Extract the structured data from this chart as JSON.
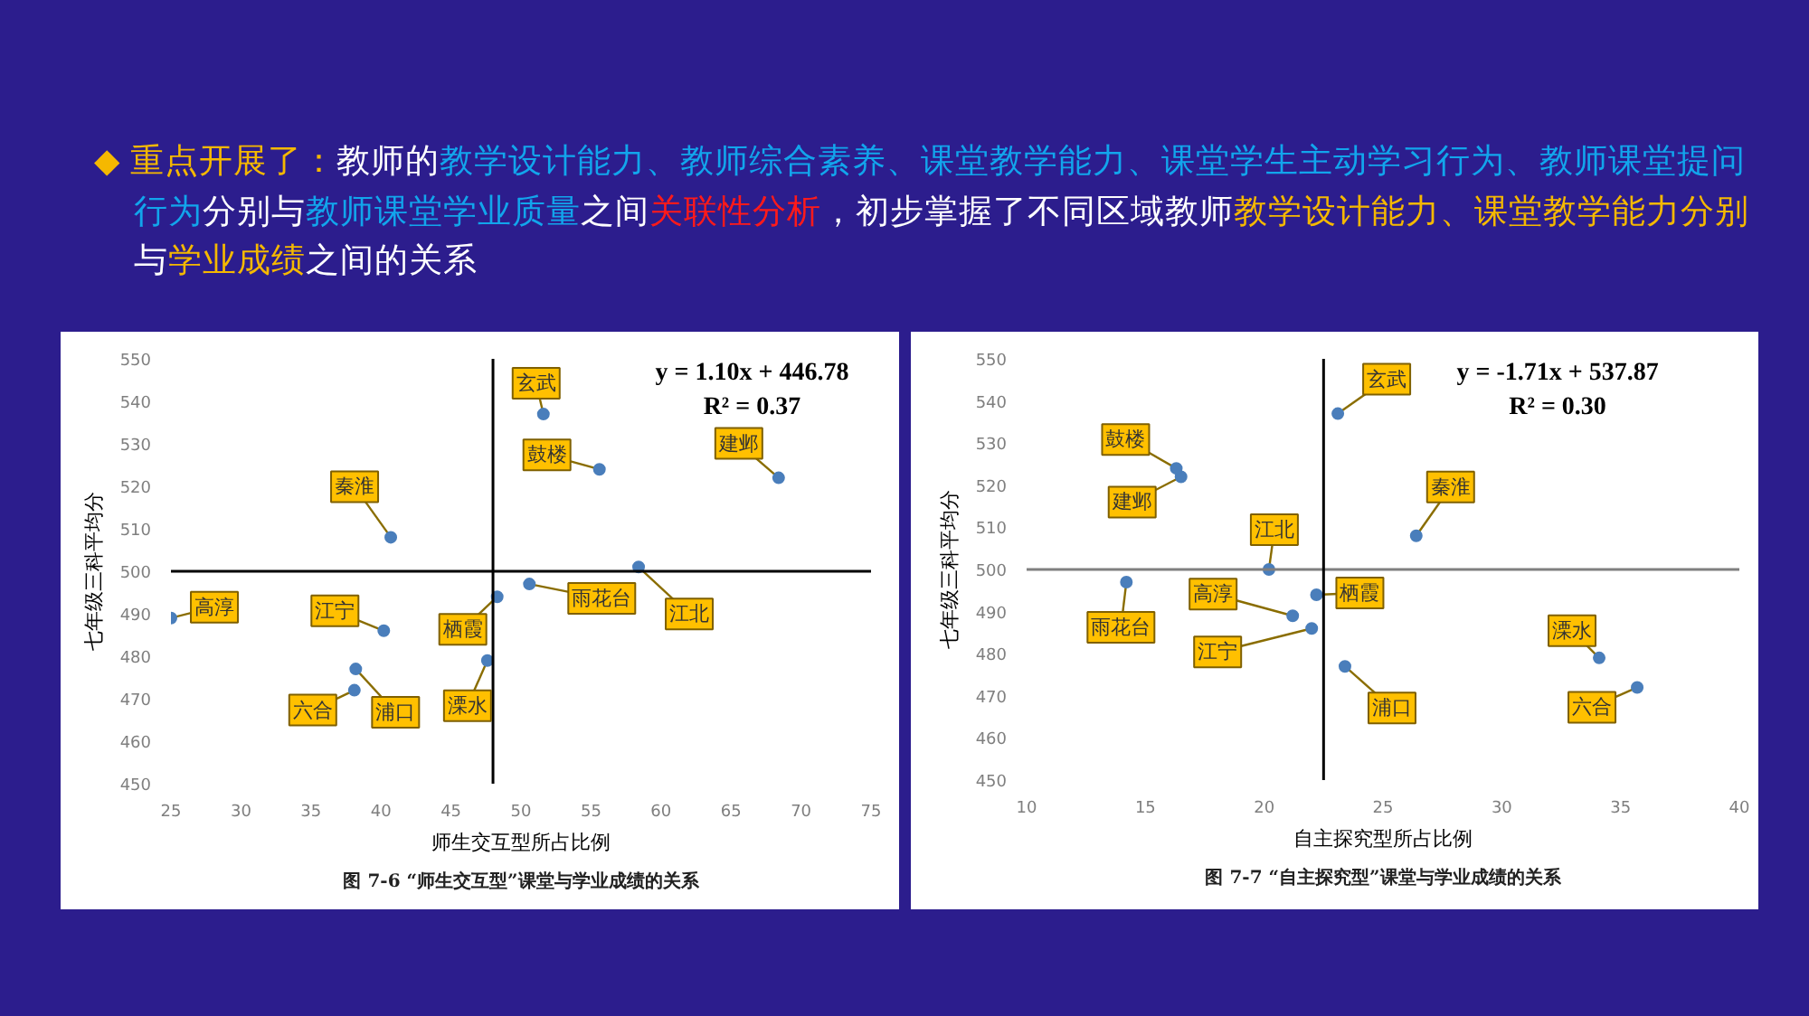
{
  "chart_data": [
    {
      "type": "other",
      "annotations": [
        "◆ 重点开展了：",
        "教师的",
        "教学设计能力、教师综合素养、课堂教学能力、课堂学生主动学习行为、教师课堂提问",
        "行为",
        "分别与",
        "教师课堂学业质量",
        "之间",
        "关联性分析",
        "，初步掌握了不同区域教师",
        "教学设计能力、课堂教学能力分别",
        "与",
        "学业成绩",
        "之间的关系"
      ],
      "colors": [
        "#f5b800",
        "#ffffff",
        "#12a5ec",
        "#12a5ec",
        "#ffffff",
        "#12a5ec",
        "#ffffff",
        "#ff1a1a",
        "#ffffff",
        "#f5b800",
        "#ffffff",
        "#f5b800",
        "#ffffff"
      ]
    },
    {
      "type": "scatter",
      "title": "图 7-6 “师生交互型”课堂与学业成绩的关系",
      "xlabel": "师生交互型所占比例",
      "ylabel": "七年级三科平均分",
      "marker": "circle",
      "grid": false,
      "x": [
        51.6,
        40.7,
        68.4,
        55.6,
        58.4,
        50.6,
        48.3,
        40.2,
        38.2,
        38.1,
        47.6,
        25.0
      ],
      "series": [
        {
          "color": "#4a7ebb",
          "values": [
            537,
            508,
            522,
            524,
            501,
            497,
            494,
            486,
            477,
            472,
            479,
            489
          ]
        }
      ],
      "xlim": [
        25,
        75
      ],
      "xticks": [
        25,
        30,
        35,
        40,
        45,
        50,
        55,
        60,
        65,
        70,
        75
      ],
      "ylim": [
        450,
        550
      ],
      "yticks": [
        450,
        460,
        470,
        480,
        490,
        500,
        510,
        520,
        530,
        540,
        550
      ],
      "ref_lines": [
        {
          "axis": "y",
          "value": 500,
          "color": "#000000"
        },
        {
          "axis": "x",
          "value": 48,
          "color": "#000000"
        }
      ],
      "annotations": [
        "y = 1.10x + 446.78",
        "R² = 0.37",
        {
          "text": "玄武",
          "x": 51.6,
          "y": 537
        },
        {
          "text": "秦淮",
          "x": 40.7,
          "y": 508
        },
        {
          "text": "建邺",
          "x": 68.4,
          "y": 522
        },
        {
          "text": "鼓楼",
          "x": 55.6,
          "y": 524
        },
        {
          "text": "江北",
          "x": 58.4,
          "y": 501
        },
        {
          "text": "雨花台",
          "x": 50.6,
          "y": 497
        },
        {
          "text": "栖霞",
          "x": 48.3,
          "y": 494
        },
        {
          "text": "江宁",
          "x": 40.2,
          "y": 486
        },
        {
          "text": "浦口",
          "x": 38.2,
          "y": 477
        },
        {
          "text": "六合",
          "x": 38.1,
          "y": 472
        },
        {
          "text": "溧水",
          "x": 47.6,
          "y": 479
        },
        {
          "text": "高淳",
          "x": 25.0,
          "y": 489
        }
      ]
    },
    {
      "type": "scatter",
      "title": "图 7-7 “自主探究型”课堂与学业成绩的关系",
      "xlabel": "自主探究型所占比例",
      "ylabel": "七年级三科平均分",
      "marker": "circle",
      "grid": false,
      "x": [
        23.1,
        26.4,
        16.5,
        16.3,
        20.2,
        14.2,
        22.2,
        22.0,
        23.4,
        35.7,
        34.1,
        21.2
      ],
      "series": [
        {
          "color": "#4a7ebb",
          "values": [
            537,
            508,
            522,
            524,
            500,
            497,
            494,
            486,
            477,
            472,
            479,
            489
          ]
        }
      ],
      "xlim": [
        10,
        40
      ],
      "xticks": [
        10,
        15,
        20,
        25,
        30,
        35,
        40
      ],
      "ylim": [
        450,
        550
      ],
      "yticks": [
        450,
        460,
        470,
        480,
        490,
        500,
        510,
        520,
        530,
        540,
        550
      ],
      "ref_lines": [
        {
          "axis": "y",
          "value": 500,
          "color": "#7f7f7f"
        },
        {
          "axis": "x",
          "value": 22.5,
          "color": "#000000"
        }
      ],
      "annotations": [
        "y = -1.71x + 537.87",
        "R² = 0.30",
        {
          "text": "玄武",
          "x": 23.1,
          "y": 537
        },
        {
          "text": "秦淮",
          "x": 26.4,
          "y": 508
        },
        {
          "text": "建邺",
          "x": 16.5,
          "y": 522
        },
        {
          "text": "鼓楼",
          "x": 16.3,
          "y": 524
        },
        {
          "text": "江北",
          "x": 20.2,
          "y": 500
        },
        {
          "text": "雨花台",
          "x": 14.2,
          "y": 497
        },
        {
          "text": "栖霞",
          "x": 22.2,
          "y": 494
        },
        {
          "text": "江宁",
          "x": 22.0,
          "y": 486
        },
        {
          "text": "浦口",
          "x": 23.4,
          "y": 477
        },
        {
          "text": "六合",
          "x": 35.7,
          "y": 472
        },
        {
          "text": "溧水",
          "x": 34.1,
          "y": 479
        },
        {
          "text": "高淳",
          "x": 21.2,
          "y": 489
        }
      ]
    }
  ]
}
